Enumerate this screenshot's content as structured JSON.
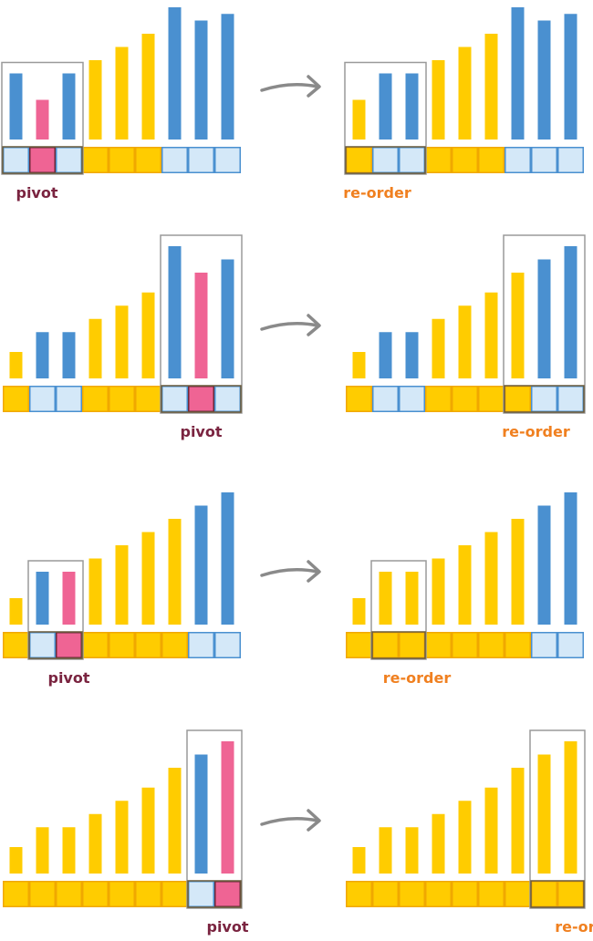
{
  "colors": {
    "blue": "#4a90d0",
    "yellow": "#ffcc00",
    "pink": "#ef6494",
    "cell_blue_fill": "#d4e8f8",
    "cell_blue_border": "#4a90d0",
    "cell_yellow_fill": "#ffcc00",
    "cell_yellow_border": "#f0a800",
    "cell_pink_fill": "#ef6494",
    "cell_pink_border": "#6a2a3a",
    "box_border": "#9a9a9a",
    "box_cell_border": "#6a5a3a",
    "pivot_label": "#7a2440",
    "reorder_label": "#f08020",
    "arrow": "#8a8a8a"
  },
  "labels": {
    "pivot": "pivot",
    "reorder": "re-order"
  },
  "steps": [
    {
      "before": {
        "heights": [
          5,
          3,
          5,
          6,
          7,
          8,
          10,
          9,
          9.5
        ],
        "colors": [
          "blue",
          "pink",
          "blue",
          "yellow",
          "yellow",
          "yellow",
          "blue",
          "blue",
          "blue"
        ],
        "box": [
          0,
          2
        ],
        "pivot_index": 1
      },
      "after": {
        "heights": [
          3,
          5,
          5,
          6,
          7,
          8,
          10,
          9,
          9.5
        ],
        "colors": [
          "yellow",
          "blue",
          "blue",
          "yellow",
          "yellow",
          "yellow",
          "blue",
          "blue",
          "blue"
        ],
        "box": [
          0,
          2
        ],
        "reorder_index": 0
      }
    },
    {
      "before": {
        "heights": [
          2,
          3.5,
          3.5,
          4.5,
          5.5,
          6.5,
          10,
          8,
          9
        ],
        "colors": [
          "yellow",
          "blue",
          "blue",
          "yellow",
          "yellow",
          "yellow",
          "blue",
          "pink",
          "blue"
        ],
        "box": [
          6,
          8
        ],
        "pivot_index": 7
      },
      "after": {
        "heights": [
          2,
          3.5,
          3.5,
          4.5,
          5.5,
          6.5,
          8,
          9,
          10
        ],
        "colors": [
          "yellow",
          "blue",
          "blue",
          "yellow",
          "yellow",
          "yellow",
          "yellow",
          "blue",
          "blue"
        ],
        "box": [
          6,
          8
        ],
        "reorder_index": 6
      }
    },
    {
      "before": {
        "heights": [
          2,
          4,
          4,
          5,
          6,
          7,
          8,
          9,
          10
        ],
        "colors": [
          "yellow",
          "blue",
          "pink",
          "yellow",
          "yellow",
          "yellow",
          "yellow",
          "blue",
          "blue"
        ],
        "box": [
          1,
          2
        ],
        "pivot_index": 2
      },
      "after": {
        "heights": [
          2,
          4,
          4,
          5,
          6,
          7,
          8,
          9,
          10
        ],
        "colors": [
          "yellow",
          "yellow",
          "yellow",
          "yellow",
          "yellow",
          "yellow",
          "yellow",
          "blue",
          "blue"
        ],
        "box": [
          1,
          2
        ],
        "reorder_index": 1.5
      }
    },
    {
      "before": {
        "heights": [
          2,
          3.5,
          3.5,
          4.5,
          5.5,
          6.5,
          8,
          9,
          10
        ],
        "colors": [
          "yellow",
          "yellow",
          "yellow",
          "yellow",
          "yellow",
          "yellow",
          "yellow",
          "blue",
          "pink"
        ],
        "box": [
          7,
          8
        ],
        "pivot_index": 8
      },
      "after": {
        "heights": [
          2,
          3.5,
          3.5,
          4.5,
          5.5,
          6.5,
          8,
          9,
          10
        ],
        "colors": [
          "yellow",
          "yellow",
          "yellow",
          "yellow",
          "yellow",
          "yellow",
          "yellow",
          "yellow",
          "yellow"
        ],
        "box": [
          7,
          8
        ],
        "reorder_index": 8
      }
    }
  ]
}
